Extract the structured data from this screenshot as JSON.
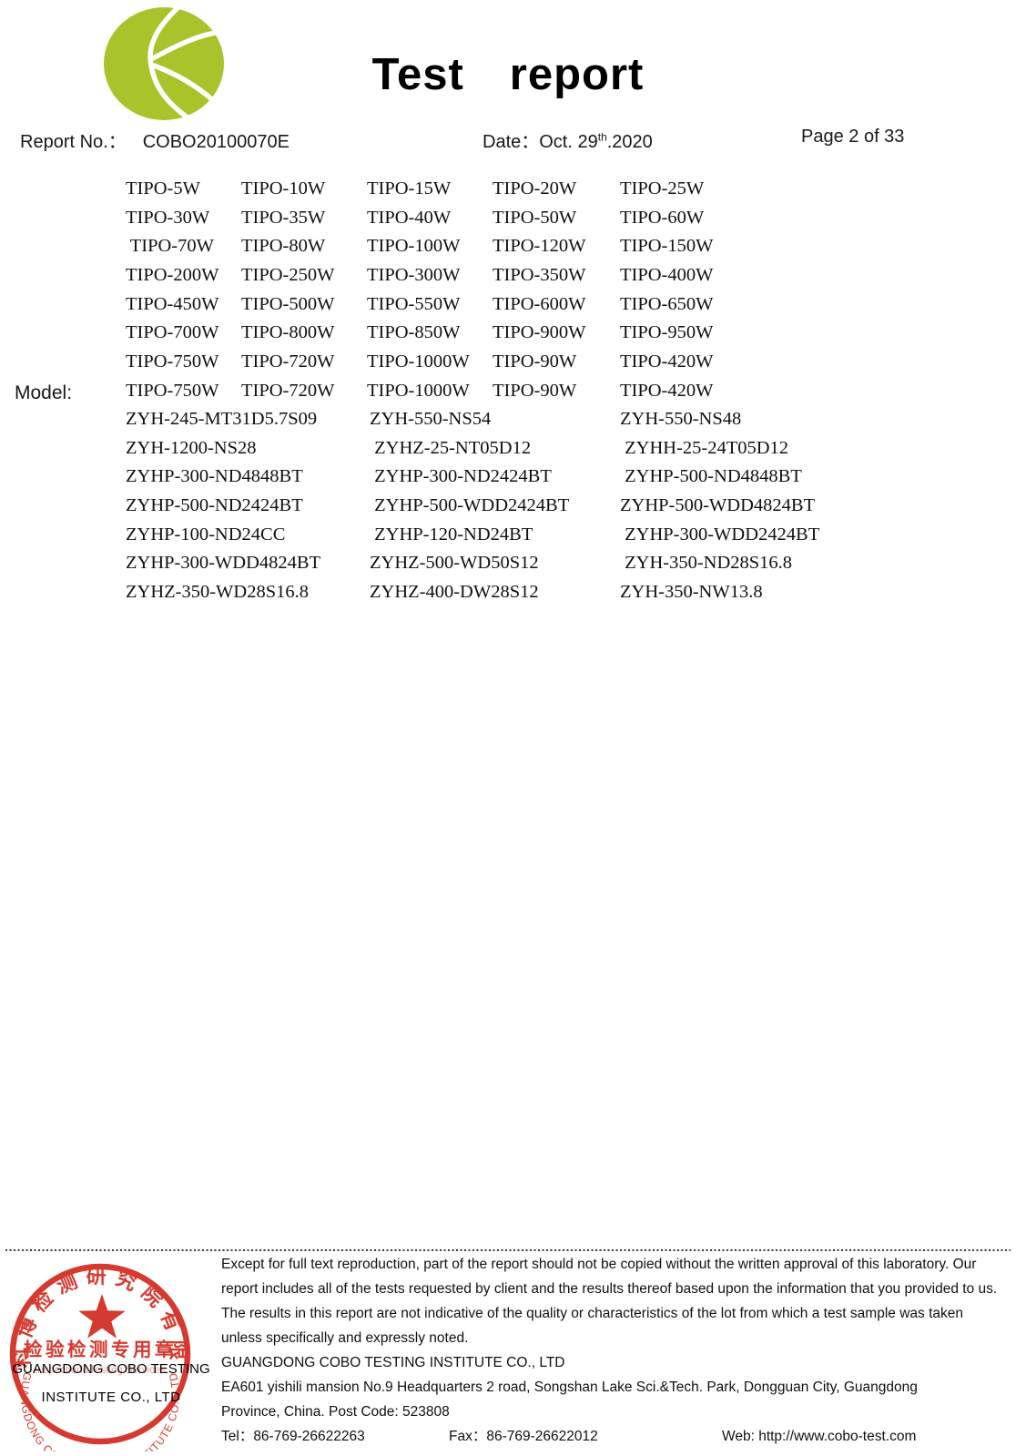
{
  "header": {
    "title": "Test　report",
    "report_no_label": "Report No.：",
    "report_no": "COBO20100070E",
    "date_label": "Date：",
    "date_main": "Oct. 29",
    "date_sup": "th",
    "date_suffix": ".2020",
    "page": "Page 2 of 33",
    "logo_color": "#a8c42a"
  },
  "model": {
    "label": "Model:",
    "tipo_rows": [
      [
        "TIPO-5W",
        "TIPO-10W",
        "TIPO-15W",
        "TIPO-20W",
        "TIPO-25W"
      ],
      [
        "TIPO-30W",
        "TIPO-35W",
        "TIPO-40W",
        "TIPO-50W",
        "TIPO-60W"
      ],
      [
        " TIPO-70W",
        "TIPO-80W",
        "TIPO-100W",
        "TIPO-120W",
        "TIPO-150W"
      ],
      [
        "TIPO-200W",
        "TIPO-250W",
        "TIPO-300W",
        "TIPO-350W",
        "TIPO-400W"
      ],
      [
        "TIPO-450W",
        "TIPO-500W",
        "TIPO-550W",
        "TIPO-600W",
        "TIPO-650W"
      ],
      [
        "TIPO-700W",
        "TIPO-800W",
        "TIPO-850W",
        "TIPO-900W",
        "TIPO-950W"
      ],
      [
        "TIPO-750W",
        "TIPO-720W",
        "TIPO-1000W",
        "TIPO-90W",
        "TIPO-420W"
      ],
      [
        "TIPO-750W",
        "TIPO-720W",
        "TIPO-1000W",
        "TIPO-90W",
        "TIPO-420W"
      ]
    ],
    "zyh_rows": [
      [
        "ZYH-245-MT31D5.7S09",
        "ZYH-550-NS54",
        "ZYH-550-NS48"
      ],
      [
        "ZYH-1200-NS28",
        " ZYHZ-25-NT05D12",
        " ZYHH-25-24T05D12"
      ],
      [
        "ZYHP-300-ND4848BT",
        " ZYHP-300-ND2424BT",
        " ZYHP-500-ND4848BT"
      ],
      [
        "ZYHP-500-ND2424BT",
        " ZYHP-500-WDD2424BT",
        "ZYHP-500-WDD4824BT"
      ],
      [
        "ZYHP-100-ND24CC",
        " ZYHP-120-ND24BT",
        " ZYHP-300-WDD2424BT"
      ],
      [
        "ZYHP-300-WDD4824BT",
        "ZYHZ-500-WD50S12",
        " ZYH-350-ND28S16.8"
      ],
      [
        "ZYHZ-350-WD28S16.8",
        "ZYHZ-400-DW28S12",
        "ZYH-350-NW13.8"
      ]
    ]
  },
  "footer": {
    "disclaimer_lines": [
      "Except for full text reproduction, part of the report should not be copied without the written approval of this laboratory. Our",
      "report includes all of the tests requested by client and the results thereof based upon the information that you provided to us.",
      "The results in this report are not indicative of the quality or characteristics of the lot from which a test sample was taken",
      "unless specifically and expressly noted."
    ],
    "company": "GUANGDONG COBO TESTING INSTITUTE CO., LTD",
    "address_line1": "EA601 yishili mansion No.9 Headquarters 2 road, Songshan Lake Sci.&Tech. Park, Dongguan City, Guangdong",
    "address_line2": "Province, China. Post Code: 523808",
    "tel": "Tel：86-769-26622263",
    "fax": "Fax：86-769-26622012",
    "web": "Web: http://www.cobo-test.com",
    "stamp": {
      "ink_color": "#d32b20",
      "arc_top_cn": "广东科博检测研究院有限公司",
      "line_cn": "检验检测专用章",
      "line_services": "Inspection&Testing Services",
      "arc_bottom_en": "GUANGDONG COBO TESTING INSTITUTE CO., LTD",
      "overlay_line1": "GUANGDONG COBO TESTING",
      "overlay_line2": "INSTITUTE CO., LTD"
    }
  }
}
